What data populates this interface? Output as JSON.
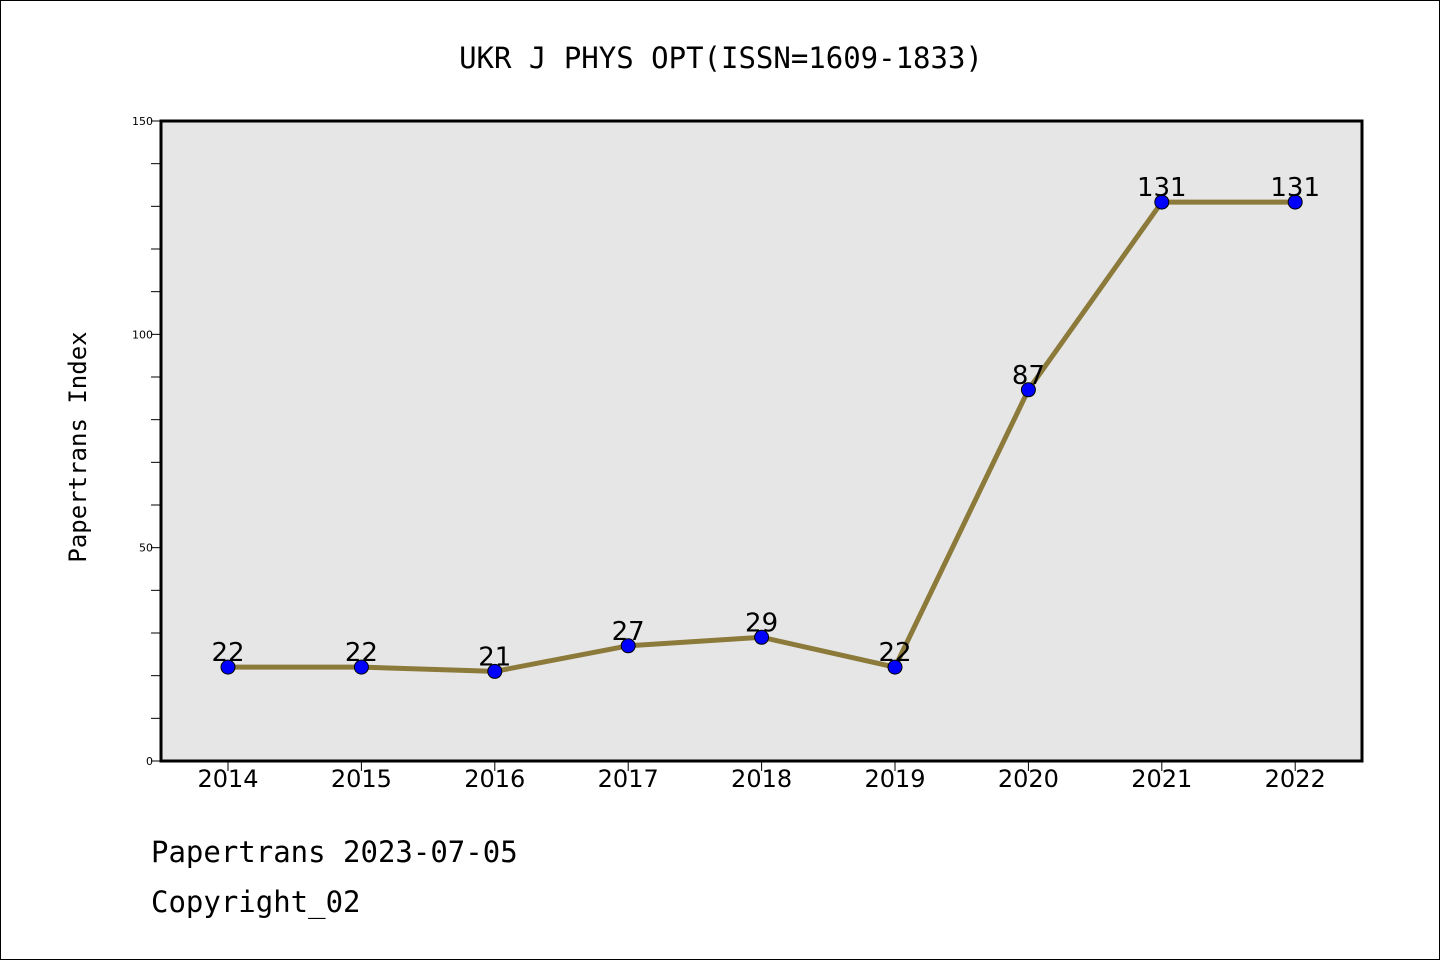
{
  "chart_data": {
    "type": "line",
    "title": "UKR J PHYS OPT(ISSN=1609-1833)",
    "xlabel": "",
    "ylabel": "Papertrans Index",
    "categories": [
      "2014",
      "2015",
      "2016",
      "2017",
      "2018",
      "2019",
      "2020",
      "2021",
      "2022"
    ],
    "series": [
      {
        "values": [
          22,
          22,
          21,
          27,
          29,
          22,
          87,
          131,
          131
        ]
      }
    ],
    "data_labels": [
      "22",
      "22",
      "21",
      "27",
      "29",
      "22",
      "87",
      "131",
      "131"
    ],
    "ylim": [
      0,
      150
    ],
    "y_ticks": [
      "0",
      "50",
      "100",
      "150"
    ],
    "grid": false,
    "colors": {
      "line": "#8c7a3a",
      "marker": "#0000ff",
      "plot_bg": "#e6e6e6"
    }
  },
  "footer": {
    "line1": "Papertrans 2023-07-05",
    "line2": "Copyright_02"
  }
}
